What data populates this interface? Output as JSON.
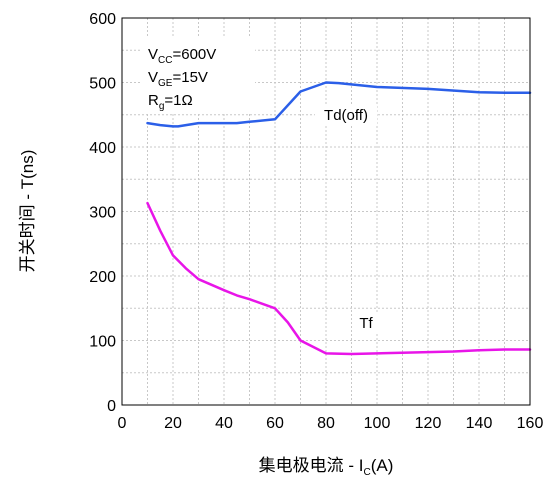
{
  "chart_data": {
    "type": "line",
    "xlabel": {
      "prefix": "集电极电流 - I",
      "sub": "C",
      "suffix": "(A)"
    },
    "ylabel": "开关时间 - T(ns)",
    "xlim": [
      0,
      160
    ],
    "ylim": [
      0,
      600
    ],
    "x_ticks": [
      0,
      20,
      40,
      60,
      80,
      100,
      120,
      140,
      160
    ],
    "y_ticks": [
      0,
      100,
      200,
      300,
      400,
      500,
      600
    ],
    "grid": true,
    "conditions": [
      {
        "main": "V",
        "sub": "CC",
        "rest": "=600V"
      },
      {
        "main": "V",
        "sub": "GE",
        "rest": "=15V"
      },
      {
        "main": "R",
        "sub": "g",
        "rest": "=1Ω"
      }
    ],
    "series": [
      {
        "name": "Td(off)",
        "color": "#2b5fe8",
        "x": [
          10,
          15,
          20,
          22,
          30,
          40,
          45,
          50,
          60,
          70,
          80,
          85,
          100,
          120,
          140,
          150,
          160
        ],
        "values": [
          437,
          434,
          432,
          432,
          437,
          437,
          437,
          439,
          443,
          486,
          500,
          499,
          493,
          490,
          485,
          484,
          484
        ]
      },
      {
        "name": "Tf",
        "color": "#e815e8",
        "x": [
          10,
          15,
          20,
          25,
          30,
          40,
          45,
          50,
          60,
          65,
          70,
          80,
          90,
          100,
          120,
          130,
          140,
          150,
          160
        ],
        "values": [
          313,
          270,
          232,
          212,
          195,
          178,
          170,
          164,
          150,
          128,
          100,
          80,
          79,
          80,
          82,
          83,
          85,
          86,
          86
        ]
      }
    ]
  }
}
